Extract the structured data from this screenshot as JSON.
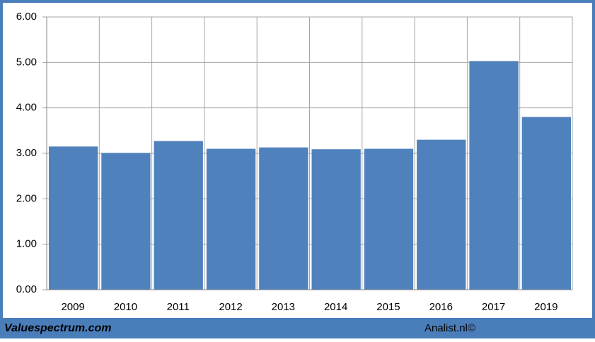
{
  "chart_data": {
    "type": "bar",
    "categories": [
      "2009",
      "2010",
      "2011",
      "2012",
      "2013",
      "2014",
      "2015",
      "2016",
      "2017",
      "2019"
    ],
    "values": [
      3.15,
      3.01,
      3.27,
      3.1,
      3.13,
      3.09,
      3.1,
      3.3,
      5.03,
      3.8
    ],
    "color": "#4f81bd",
    "ylim": [
      0,
      6
    ],
    "yticks": [
      {
        "value": 0,
        "label": "0.00"
      },
      {
        "value": 1,
        "label": "1.00"
      },
      {
        "value": 2,
        "label": "2.00"
      },
      {
        "value": 3,
        "label": "3.00"
      },
      {
        "value": 4,
        "label": "4.00"
      },
      {
        "value": 5,
        "label": "5.00"
      },
      {
        "value": 6,
        "label": "6.00"
      }
    ],
    "grid": true
  },
  "footer": {
    "left": "Valuespectrum.com",
    "right": "Analist.nl©"
  }
}
